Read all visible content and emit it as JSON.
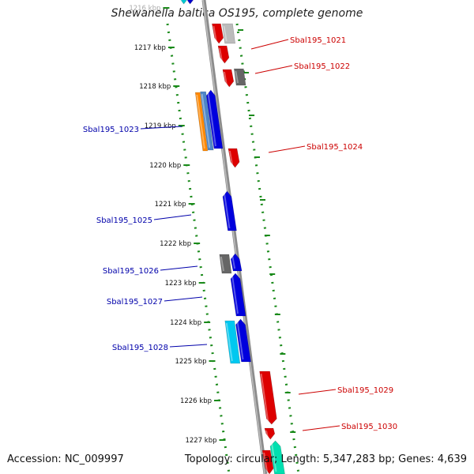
{
  "title": "Shewanella baltica OS195, complete genome",
  "accession": "Accession: NC_009997",
  "summary": "Topology: circular; Length: 5,347,283 bp; Genes: 4,639",
  "colors": {
    "backbone": "#8c8c8c",
    "tick": "#1a8a1a",
    "forward_label": "#cc0000",
    "reverse_label": "#0000aa"
  },
  "ticks": [
    "1216 kbp",
    "1217 kbp",
    "1218 kbp",
    "1219 kbp",
    "1220 kbp",
    "1221 kbp",
    "1222 kbp",
    "1223 kbp",
    "1224 kbp",
    "1225 kbp",
    "1226 kbp",
    "1227 kbp"
  ],
  "gene_labels": [
    {
      "text": "Sbal195_1021",
      "strand": "forward"
    },
    {
      "text": "Sbal195_1022",
      "strand": "forward"
    },
    {
      "text": "Sbal195_1023",
      "strand": "reverse"
    },
    {
      "text": "Sbal195_1024",
      "strand": "forward"
    },
    {
      "text": "Sbal195_1025",
      "strand": "reverse"
    },
    {
      "text": "Sbal195_1026",
      "strand": "reverse"
    },
    {
      "text": "Sbal195_1027",
      "strand": "reverse"
    },
    {
      "text": "Sbal195_1028",
      "strand": "reverse"
    },
    {
      "text": "Sbal195_1029",
      "strand": "forward"
    },
    {
      "text": "Sbal195_1030",
      "strand": "forward"
    }
  ]
}
